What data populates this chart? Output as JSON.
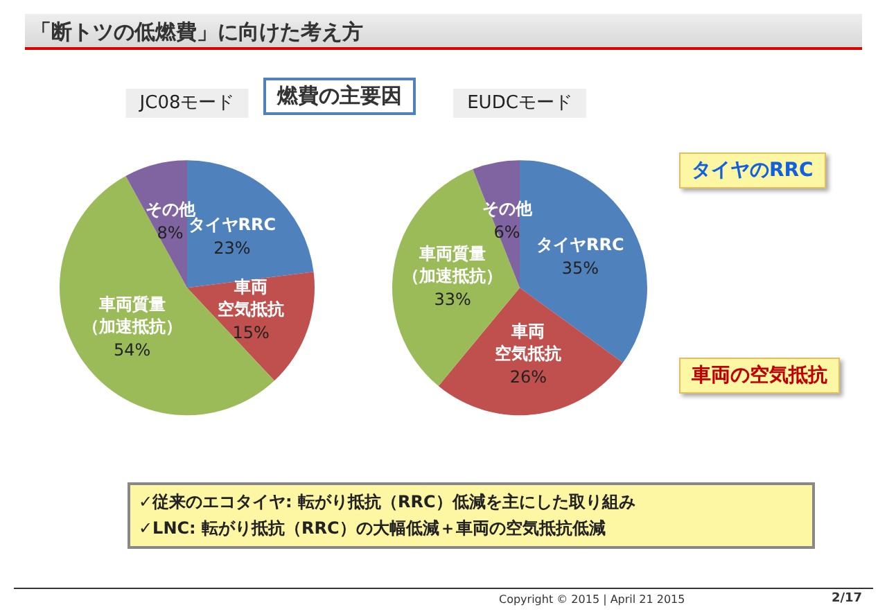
{
  "chart_data": [
    {
      "type": "pie",
      "title": "JC08モード",
      "categories": [
        "タイヤRRC",
        "車両空気抵抗",
        "車両質量（加速抵抗）",
        "その他"
      ],
      "values": [
        23,
        15,
        54,
        8
      ],
      "value_labels": [
        "23%",
        "15%",
        "54%",
        "8%"
      ],
      "colors": [
        "#4f81bd",
        "#c0504d",
        "#9bbb59",
        "#8064a2"
      ],
      "annotations": [
        "「断トツの低燃費」に向けた考え方",
        "燃費の主要因",
        "✓従来のエコタイヤ: 転がり抵抗（RRC）低減を主にした取り組み",
        "✓LNC: 転がり抵抗（RRC）の大幅低減＋車両の空気抵抗低減",
        "Copyright © 2015  |  April 21  2015",
        "2/17"
      ]
    },
    {
      "type": "pie",
      "title": "EUDCモード",
      "categories": [
        "タイヤRRC",
        "車両空気抵抗",
        "車両質量（加速抵抗）",
        "その他"
      ],
      "values": [
        35,
        26,
        33,
        6
      ],
      "value_labels": [
        "35%",
        "26%",
        "33%",
        "6%"
      ],
      "colors": [
        "#4f81bd",
        "#c0504d",
        "#9bbb59",
        "#8064a2"
      ],
      "annotations": [
        "タイヤのRRC",
        "車両の空気抵抗"
      ]
    }
  ]
}
